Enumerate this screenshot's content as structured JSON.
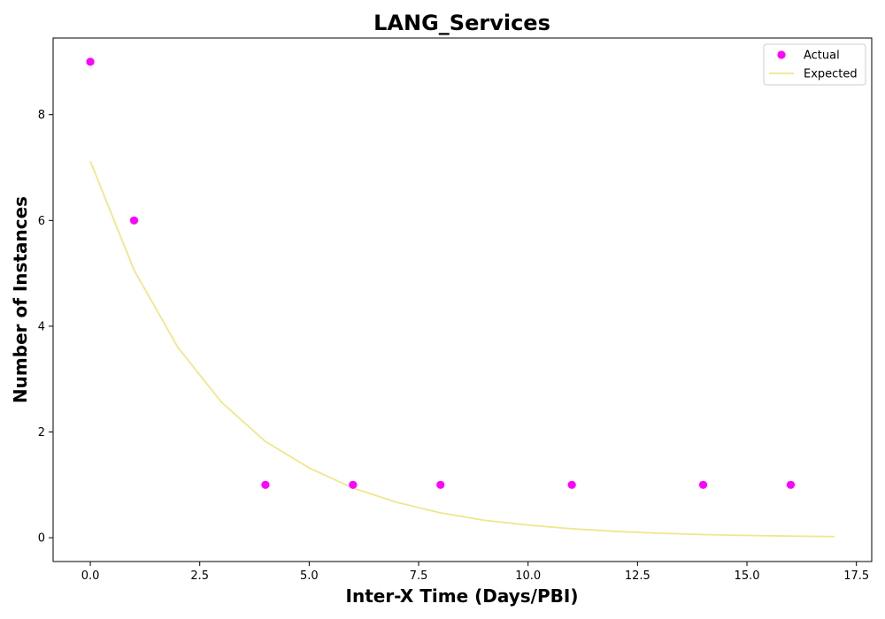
{
  "chart_data": {
    "type": "scatter",
    "title": "LANG_Services",
    "xlabel": "Inter-X Time (Days/PBI)",
    "ylabel": "Number of Instances",
    "xlim": [
      -0.85,
      17.85
    ],
    "ylim": [
      -0.45,
      9.45
    ],
    "xticks": [
      0.0,
      2.5,
      5.0,
      7.5,
      10.0,
      12.5,
      15.0,
      17.5
    ],
    "xtick_labels": [
      "0.0",
      "2.5",
      "5.0",
      "7.5",
      "10.0",
      "12.5",
      "15.0",
      "17.5"
    ],
    "yticks": [
      0,
      2,
      4,
      6,
      8
    ],
    "ytick_labels": [
      "0",
      "2",
      "4",
      "6",
      "8"
    ],
    "grid": false,
    "legend_position": "top-right",
    "series": [
      {
        "name": "Actual",
        "kind": "scatter",
        "color": "#ff00ff",
        "x": [
          0,
          1,
          4,
          6,
          8,
          11,
          14,
          16
        ],
        "y": [
          9,
          6,
          1,
          1,
          1,
          1,
          1,
          1
        ]
      },
      {
        "name": "Expected",
        "kind": "line",
        "color": "#f0e68c",
        "x": [
          0,
          1,
          2,
          3,
          4,
          5,
          6,
          7,
          8,
          9,
          10,
          11,
          12,
          13,
          14,
          15,
          16,
          17
        ],
        "y": [
          7.12,
          5.06,
          3.6,
          2.56,
          1.82,
          1.32,
          0.94,
          0.67,
          0.47,
          0.33,
          0.24,
          0.17,
          0.12,
          0.085,
          0.06,
          0.043,
          0.031,
          0.022
        ]
      }
    ]
  }
}
